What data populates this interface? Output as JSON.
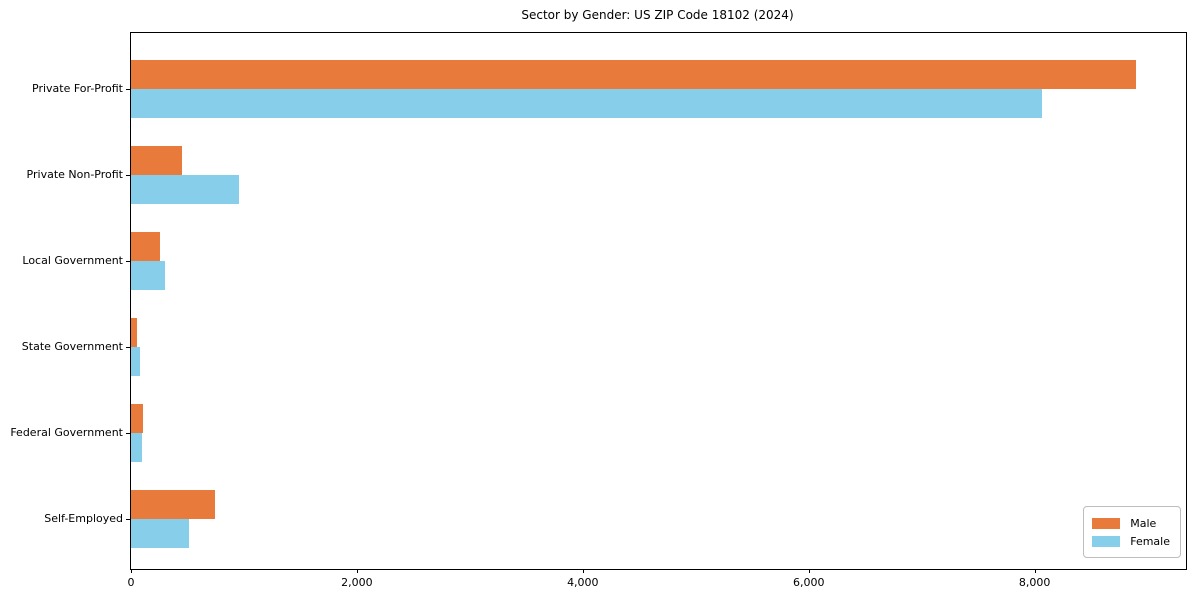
{
  "chart_data": {
    "type": "bar",
    "orientation": "horizontal",
    "title": "Sector by Gender: US ZIP Code 18102 (2024)",
    "categories": [
      "Private For-Profit",
      "Private Non-Profit",
      "Local Government",
      "State Government",
      "Federal Government",
      "Self-Employed"
    ],
    "series": [
      {
        "name": "Male",
        "color": "#e87a3b",
        "values": [
          8893,
          451,
          257,
          53,
          104,
          746
        ]
      },
      {
        "name": "Female",
        "color": "#87ceeb",
        "values": [
          8061,
          958,
          301,
          77,
          95,
          511
        ]
      }
    ],
    "xlabel": "",
    "ylabel": "",
    "xlim": [
      0,
      9340
    ],
    "xticks": [
      0,
      2000,
      4000,
      6000,
      8000
    ],
    "xtick_labels": [
      "0",
      "2,000",
      "4,000",
      "6,000",
      "8,000"
    ],
    "legend_position": "lower right",
    "grid": false,
    "axis_color": "#000000"
  }
}
